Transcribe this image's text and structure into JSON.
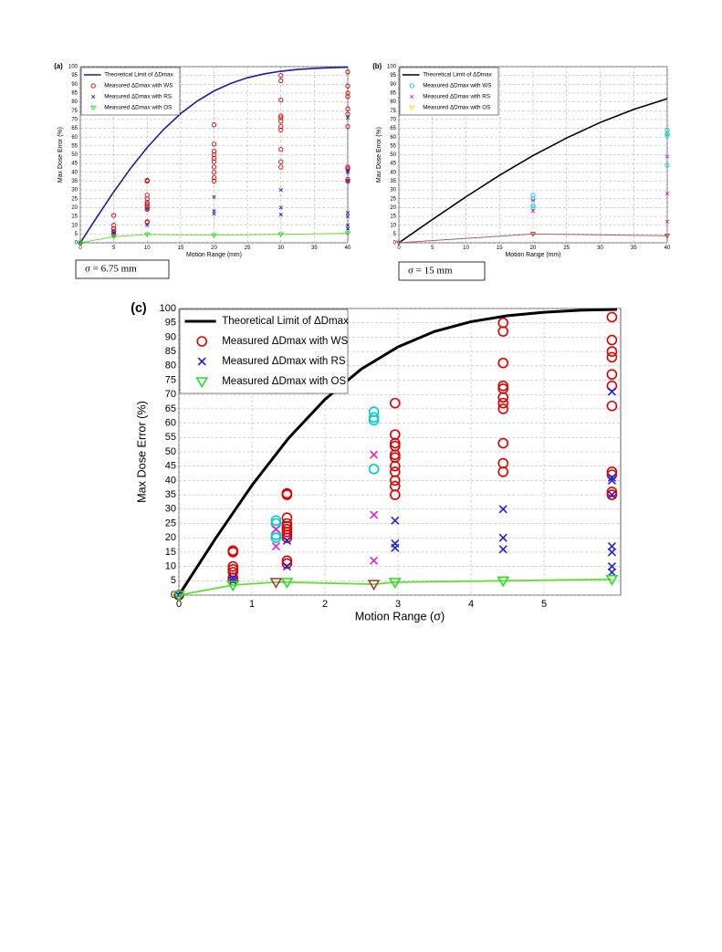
{
  "chart_data": [
    {
      "type": "scatter",
      "label": "(a)",
      "annotation": "σ = 6.75 mm",
      "xlabel": "Motion Range (mm)",
      "ylabel": "Max Dose Error (%)",
      "xlim": [
        0,
        40
      ],
      "ylim": [
        0,
        100
      ],
      "xticks": [
        0,
        5,
        10,
        15,
        20,
        25,
        30,
        35,
        40
      ],
      "yticks": [
        0,
        5,
        10,
        15,
        20,
        25,
        30,
        35,
        40,
        45,
        50,
        55,
        60,
        65,
        70,
        75,
        80,
        85,
        90,
        95,
        100
      ],
      "grid": true,
      "legend": "upper left",
      "series": [
        {
          "name": "Theoretical Limit of ΔDmax",
          "marker": "line",
          "color": "#1c1c9c",
          "x": [
            0,
            2.5,
            5,
            7.5,
            10,
            12.5,
            15,
            17.5,
            20,
            22.5,
            25,
            27.5,
            30,
            32.5,
            35,
            37.5,
            40
          ],
          "values": [
            0,
            14.7,
            28.9,
            42.2,
            54.1,
            64.5,
            73.3,
            80.5,
            86.2,
            90.5,
            93.7,
            95.9,
            97.4,
            98.4,
            99.0,
            99.4,
            99.7
          ]
        },
        {
          "name": "Measured ΔDmax with WS",
          "marker": "circle",
          "color": "#e00000",
          "x": [
            0,
            5,
            5,
            5,
            5,
            5,
            5,
            10,
            10,
            10,
            10,
            10,
            10,
            10,
            10,
            10,
            10,
            10,
            20,
            20,
            20,
            20,
            20,
            20,
            20,
            20,
            20,
            20,
            30,
            30,
            30,
            30,
            30,
            30,
            30,
            30,
            30,
            30,
            30,
            40,
            40,
            40,
            40,
            40,
            40,
            40,
            40,
            40,
            40,
            40
          ],
          "values": [
            0,
            15.5,
            10,
            8,
            6.5,
            5,
            4.5,
            35.5,
            35,
            27,
            25,
            23,
            22,
            21,
            20,
            19,
            12,
            11.5,
            67,
            56,
            52,
            50,
            48,
            46,
            43,
            40,
            37,
            35,
            95,
            92,
            81,
            72,
            71,
            69,
            66,
            64,
            53,
            46,
            43,
            97,
            89,
            85,
            83,
            76,
            73,
            66,
            43,
            42,
            36,
            35
          ]
        },
        {
          "name": "Measured ΔDmax with RS",
          "marker": "x",
          "color": "#2020e0",
          "x": [
            0,
            5,
            5,
            10,
            10,
            20,
            20,
            20,
            30,
            30,
            30,
            40,
            40,
            40,
            40,
            40,
            40,
            40,
            40
          ],
          "values": [
            0,
            6,
            5,
            19,
            10,
            26,
            18,
            16.5,
            30,
            20,
            16,
            71,
            41,
            40,
            35,
            17,
            15,
            10,
            8
          ]
        },
        {
          "name": "Measured ΔDmax with OS",
          "marker": "triangle",
          "color": "#20e020",
          "line_color": "#66dd33",
          "x": [
            0,
            5,
            10,
            20,
            30,
            40
          ],
          "values": [
            0,
            3.5,
            4.7,
            4.3,
            4.8,
            5.3
          ]
        }
      ]
    },
    {
      "type": "scatter",
      "label": "(b)",
      "annotation": "σ = 15 mm",
      "xlabel": "Motion Range (mm)",
      "ylabel": "Max Dose Error (%)",
      "xlim": [
        0,
        40
      ],
      "ylim": [
        0,
        100
      ],
      "xticks": [
        0,
        5,
        10,
        15,
        20,
        25,
        30,
        35,
        40
      ],
      "yticks": [
        0,
        5,
        10,
        15,
        20,
        25,
        30,
        35,
        40,
        45,
        50,
        55,
        60,
        65,
        70,
        75,
        80,
        85,
        90,
        95,
        100
      ],
      "grid": true,
      "legend": "upper left",
      "series": [
        {
          "name": "Theoretical Limit of ΔDmax",
          "marker": "line",
          "color": "#000000",
          "x": [
            0,
            5,
            10,
            15,
            20,
            25,
            30,
            35,
            40
          ],
          "values": [
            0,
            13.2,
            26.1,
            38.3,
            49.5,
            59.5,
            68.3,
            75.7,
            81.8
          ]
        },
        {
          "name": "Measured ΔDmax with WS",
          "marker": "circle",
          "color": "#00cccc",
          "x": [
            20,
            20,
            20,
            20,
            40,
            40,
            40,
            40
          ],
          "values": [
            27,
            25,
            21,
            20,
            64,
            62,
            61,
            44
          ]
        },
        {
          "name": "Measured ΔDmax with RS",
          "marker": "x",
          "color": "#e020e0",
          "x": [
            20,
            20,
            40,
            40,
            40
          ],
          "values": [
            24,
            18,
            49,
            28,
            12
          ]
        },
        {
          "name": "Measured ΔDmax with OS",
          "marker": "triangle",
          "color": "#e8e800",
          "point_color": "#a04040",
          "line_color": "#b06060",
          "x": [
            0,
            20,
            40
          ],
          "values": [
            0,
            5,
            4
          ]
        }
      ]
    },
    {
      "type": "scatter",
      "label": "(c)",
      "xlabel": "Motion Range (σ)",
      "ylabel": "Max Dose Error (%)",
      "xlim": [
        0,
        6.05
      ],
      "ylim": [
        0,
        100
      ],
      "xticks": [
        0,
        1,
        2,
        3,
        4,
        5
      ],
      "yticks": [
        0,
        5,
        10,
        15,
        20,
        25,
        30,
        35,
        40,
        45,
        50,
        55,
        60,
        65,
        70,
        75,
        80,
        85,
        90,
        95,
        100
      ],
      "grid": true,
      "legend": "upper left",
      "series": [
        {
          "name": "Theoretical Limit of ΔDmax",
          "marker": "line",
          "color": "#000000",
          "x": [
            0,
            0.5,
            1,
            1.5,
            2,
            2.5,
            3,
            3.5,
            4,
            4.5,
            5,
            5.5,
            6
          ],
          "values": [
            0,
            19.7,
            38.3,
            54.7,
            68.3,
            78.9,
            86.6,
            92.0,
            95.4,
            97.5,
            98.7,
            99.4,
            99.7
          ]
        },
        {
          "name": "Measured ΔDmax with WS",
          "marker": "circle",
          "color": "#e00000",
          "x": [
            0,
            0.74,
            0.74,
            0.74,
            0.74,
            0.74,
            0.74,
            0.74,
            1.33,
            1.33,
            1.33,
            1.33,
            1.48,
            1.48,
            1.48,
            1.48,
            1.48,
            1.48,
            1.48,
            1.48,
            1.48,
            1.48,
            1.48,
            2.67,
            2.67,
            2.67,
            2.67,
            2.96,
            2.96,
            2.96,
            2.96,
            2.96,
            2.96,
            2.96,
            2.96,
            2.96,
            2.96,
            2.96,
            4.44,
            4.44,
            4.44,
            4.44,
            4.44,
            4.44,
            4.44,
            4.44,
            4.44,
            4.44,
            4.44,
            5.93,
            5.93,
            5.93,
            5.93,
            5.93,
            5.93,
            5.93,
            5.93,
            5.93,
            5.93,
            5.93
          ],
          "values": [
            0,
            15.5,
            15,
            10,
            9,
            8,
            6,
            5,
            26,
            25,
            21,
            20,
            35.5,
            35,
            27,
            25,
            24,
            23,
            22,
            21,
            20,
            12,
            11,
            64,
            62,
            61,
            44,
            67,
            56,
            53,
            52,
            49,
            48,
            45,
            43,
            40,
            38,
            35,
            95,
            92,
            81,
            73,
            72,
            69,
            67,
            65,
            53,
            46,
            43,
            97,
            89,
            85,
            83,
            77,
            73,
            66,
            43,
            42,
            36,
            35
          ],
          "colors": [
            "#e00000",
            "#e00000",
            "#e00000",
            "#e00000",
            "#e00000",
            "#e00000",
            "#e00000",
            "#e00000",
            "#00cccc",
            "#00cccc",
            "#00cccc",
            "#00cccc",
            "#e00000",
            "#e00000",
            "#e00000",
            "#e00000",
            "#e00000",
            "#e00000",
            "#e00000",
            "#e00000",
            "#e00000",
            "#e00000",
            "#e00000",
            "#00cccc",
            "#00cccc",
            "#00cccc",
            "#00cccc",
            "#e00000",
            "#e00000",
            "#e00000",
            "#e00000",
            "#e00000",
            "#e00000",
            "#e00000",
            "#e00000",
            "#e00000",
            "#e00000",
            "#e00000",
            "#e00000",
            "#e00000",
            "#e00000",
            "#e00000",
            "#e00000",
            "#e00000",
            "#e00000",
            "#e00000",
            "#e00000",
            "#e00000",
            "#e00000",
            "#e00000",
            "#e00000",
            "#e00000",
            "#e00000",
            "#e00000",
            "#e00000",
            "#e00000",
            "#e00000",
            "#e00000",
            "#e00000",
            "#e00000"
          ]
        },
        {
          "name": "Measured ΔDmax with RS",
          "marker": "x",
          "color": "#2020e0",
          "x": [
            0,
            0.74,
            0.74,
            1.33,
            1.33,
            1.48,
            1.48,
            2.67,
            2.67,
            2.67,
            2.96,
            2.96,
            2.96,
            4.44,
            4.44,
            4.44,
            5.93,
            5.93,
            5.93,
            5.93,
            5.93,
            5.93,
            5.93,
            5.93
          ],
          "values": [
            0,
            6,
            5,
            23,
            17,
            19,
            10,
            49,
            28,
            12,
            26,
            18,
            16.5,
            30,
            20,
            16,
            71,
            41,
            40,
            35,
            17,
            15,
            10,
            8
          ],
          "colors": [
            "#2020e0",
            "#2020e0",
            "#2020e0",
            "#e020e0",
            "#e020e0",
            "#2020e0",
            "#2020e0",
            "#e020e0",
            "#e020e0",
            "#e020e0",
            "#2020e0",
            "#2020e0",
            "#2020e0",
            "#2020e0",
            "#2020e0",
            "#2020e0",
            "#2020e0",
            "#2020e0",
            "#2020e0",
            "#2020e0",
            "#2020e0",
            "#2020e0",
            "#2020e0",
            "#2020e0"
          ]
        },
        {
          "name": "Measured ΔDmax with OS",
          "marker": "triangle",
          "color": "#20e020",
          "line_color": "#66dd33",
          "x": [
            0,
            0.74,
            1.33,
            1.48,
            2.67,
            2.96,
            4.44,
            5.93
          ],
          "values": [
            0,
            3.5,
            4.5,
            4.5,
            3.8,
            4.5,
            5,
            5.5
          ],
          "colors": [
            "#20e020",
            "#20e020",
            "#a04040",
            "#20e020",
            "#a04040",
            "#20e020",
            "#20e020",
            "#20e020"
          ]
        }
      ]
    }
  ]
}
